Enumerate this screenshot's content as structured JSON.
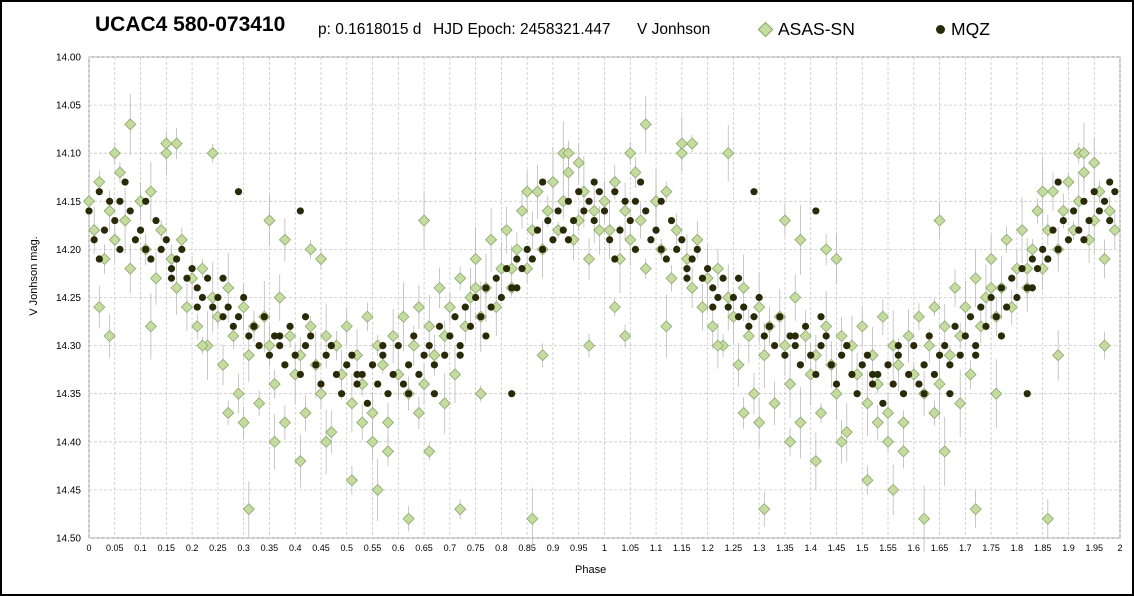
{
  "header": {
    "title": "UCAC4 580-073410",
    "period": "p: 0.1618015 d",
    "epoch": "HJD Epoch:  2458321.447",
    "band": "V Jonhson"
  },
  "legend": {
    "asas_label": "ASAS-SN",
    "mqz_label": "MQZ"
  },
  "colors": {
    "asas_fill": "#c5dca0",
    "asas_stroke": "#8aa66a",
    "mqz_fill": "#2a2a08",
    "grid": "#c8c8c8",
    "errorbar": "#b0b0b0"
  },
  "chart_data": {
    "type": "scatter",
    "title": "UCAC4 580-073410",
    "xlabel": "Phase",
    "ylabel": "V Jonhson mag.",
    "xlim": [
      0,
      2
    ],
    "ylim": [
      14.0,
      14.5
    ],
    "y_inverted": true,
    "grid": true,
    "legend_position": "top",
    "x_ticks": [
      "0",
      "0.05",
      "0.1",
      "0.15",
      "0.2",
      "0.25",
      "0.3",
      "0.35",
      "0.4",
      "0.45",
      "0.5",
      "0.55",
      "0.6",
      "0.65",
      "0.7",
      "0.75",
      "0.8",
      "0.85",
      "0.9",
      "0.95",
      "1",
      "1.05",
      "1.1",
      "1.15",
      "1.2",
      "1.25",
      "1.3",
      "1.35",
      "1.4",
      "1.45",
      "1.5",
      "1.55",
      "1.6",
      "1.65",
      "1.7",
      "1.75",
      "1.8",
      "1.85",
      "1.9",
      "1.95",
      "2"
    ],
    "y_ticks": [
      "14.00",
      "14.05",
      "14.10",
      "14.15",
      "14.20",
      "14.25",
      "14.30",
      "14.35",
      "14.40",
      "14.45",
      "14.50"
    ],
    "series": [
      {
        "name": "ASAS-SN",
        "marker": "diamond",
        "phase": [
          0.0,
          0.01,
          0.02,
          0.03,
          0.04,
          0.05,
          0.06,
          0.07,
          0.08,
          0.1,
          0.11,
          0.12,
          0.13,
          0.14,
          0.15,
          0.16,
          0.17,
          0.18,
          0.19,
          0.2,
          0.21,
          0.22,
          0.23,
          0.24,
          0.25,
          0.26,
          0.27,
          0.28,
          0.29,
          0.3,
          0.31,
          0.32,
          0.33,
          0.34,
          0.35,
          0.36,
          0.37,
          0.38,
          0.39,
          0.4,
          0.41,
          0.42,
          0.43,
          0.44,
          0.45,
          0.46,
          0.47,
          0.48,
          0.49,
          0.5,
          0.51,
          0.52,
          0.53,
          0.54,
          0.55,
          0.56,
          0.57,
          0.58,
          0.59,
          0.6,
          0.61,
          0.62,
          0.63,
          0.64,
          0.65,
          0.66,
          0.67,
          0.68,
          0.69,
          0.7,
          0.71,
          0.72,
          0.73,
          0.74,
          0.75,
          0.76,
          0.77,
          0.78,
          0.79,
          0.8,
          0.81,
          0.82,
          0.83,
          0.84,
          0.85,
          0.86,
          0.87,
          0.88,
          0.89,
          0.9,
          0.91,
          0.92,
          0.93,
          0.94,
          0.95,
          0.96,
          0.97,
          0.98,
          0.99,
          0.02,
          0.05,
          0.08,
          0.12,
          0.17,
          0.22,
          0.27,
          0.31,
          0.36,
          0.41,
          0.46,
          0.51,
          0.56,
          0.62,
          0.66,
          0.72,
          0.76,
          0.82,
          0.86,
          0.92,
          0.97,
          0.04,
          0.24,
          0.3,
          0.38,
          0.43,
          0.53,
          0.58,
          0.64,
          0.69,
          0.88,
          0.93,
          0.15,
          0.35,
          0.45,
          0.55,
          0.75,
          0.85,
          0.95,
          0.1,
          0.65
        ],
        "mag": [
          14.15,
          14.18,
          14.13,
          14.21,
          14.16,
          14.19,
          14.12,
          14.17,
          14.22,
          14.15,
          14.2,
          14.14,
          14.23,
          14.18,
          14.1,
          14.21,
          14.24,
          14.19,
          14.26,
          14.23,
          14.28,
          14.22,
          14.3,
          14.25,
          14.27,
          14.32,
          14.24,
          14.29,
          14.35,
          14.26,
          14.31,
          14.28,
          14.36,
          14.27,
          14.3,
          14.34,
          14.25,
          14.38,
          14.29,
          14.33,
          14.31,
          14.37,
          14.28,
          14.32,
          14.35,
          14.29,
          14.39,
          14.3,
          14.33,
          14.28,
          14.36,
          14.31,
          14.34,
          14.27,
          14.37,
          14.3,
          14.32,
          14.38,
          14.29,
          14.33,
          14.27,
          14.35,
          14.3,
          14.26,
          14.34,
          14.28,
          14.31,
          14.24,
          14.29,
          14.26,
          14.33,
          14.23,
          14.28,
          14.25,
          14.21,
          14.27,
          14.24,
          14.19,
          14.26,
          14.22,
          14.18,
          14.24,
          14.2,
          14.16,
          14.22,
          14.18,
          14.14,
          14.2,
          14.16,
          14.13,
          14.18,
          14.15,
          14.12,
          14.19,
          14.17,
          14.14,
          14.21,
          14.16,
          14.18,
          14.26,
          14.1,
          14.07,
          14.28,
          14.09,
          14.3,
          14.37,
          14.47,
          14.4,
          14.42,
          14.4,
          14.44,
          14.45,
          14.48,
          14.41,
          14.47,
          14.35,
          14.22,
          14.48,
          14.1,
          14.3,
          14.29,
          14.1,
          14.38,
          14.19,
          14.2,
          14.38,
          14.41,
          14.37,
          14.36,
          14.31,
          14.1,
          14.09,
          14.17,
          14.21,
          14.4,
          14.24,
          14.14,
          14.11,
          14.15,
          14.17,
          14.35
        ]
      },
      {
        "name": "MQZ",
        "marker": "circle",
        "phase": [
          0.0,
          0.01,
          0.02,
          0.03,
          0.04,
          0.05,
          0.06,
          0.07,
          0.08,
          0.09,
          0.1,
          0.11,
          0.12,
          0.13,
          0.14,
          0.15,
          0.16,
          0.17,
          0.18,
          0.19,
          0.2,
          0.21,
          0.22,
          0.23,
          0.24,
          0.25,
          0.26,
          0.27,
          0.28,
          0.29,
          0.3,
          0.31,
          0.32,
          0.33,
          0.34,
          0.35,
          0.36,
          0.37,
          0.38,
          0.39,
          0.4,
          0.41,
          0.42,
          0.43,
          0.44,
          0.45,
          0.46,
          0.47,
          0.48,
          0.49,
          0.5,
          0.51,
          0.52,
          0.53,
          0.54,
          0.55,
          0.56,
          0.57,
          0.58,
          0.59,
          0.6,
          0.61,
          0.62,
          0.63,
          0.64,
          0.65,
          0.66,
          0.67,
          0.68,
          0.69,
          0.7,
          0.71,
          0.72,
          0.73,
          0.74,
          0.75,
          0.76,
          0.77,
          0.78,
          0.79,
          0.8,
          0.81,
          0.82,
          0.83,
          0.84,
          0.85,
          0.86,
          0.87,
          0.88,
          0.89,
          0.9,
          0.91,
          0.92,
          0.93,
          0.94,
          0.95,
          0.96,
          0.97,
          0.98,
          0.99,
          0.02,
          0.06,
          0.11,
          0.16,
          0.21,
          0.26,
          0.32,
          0.37,
          0.42,
          0.47,
          0.52,
          0.57,
          0.62,
          0.67,
          0.72,
          0.77,
          0.83,
          0.88,
          0.93,
          0.98,
          0.29,
          0.41,
          0.82
        ],
        "mag": [
          14.16,
          14.19,
          14.14,
          14.18,
          14.15,
          14.17,
          14.2,
          14.13,
          14.16,
          14.19,
          14.18,
          14.15,
          14.21,
          14.17,
          14.2,
          14.19,
          14.22,
          14.21,
          14.2,
          14.23,
          14.22,
          14.24,
          14.25,
          14.23,
          14.26,
          14.25,
          14.27,
          14.26,
          14.28,
          14.27,
          14.25,
          14.29,
          14.28,
          14.3,
          14.27,
          14.31,
          14.29,
          14.3,
          14.32,
          14.28,
          14.31,
          14.33,
          14.3,
          14.29,
          14.32,
          14.34,
          14.31,
          14.3,
          14.33,
          14.35,
          14.32,
          14.31,
          14.34,
          14.33,
          14.36,
          14.32,
          14.34,
          14.31,
          14.35,
          14.33,
          14.3,
          14.34,
          14.32,
          14.29,
          14.33,
          14.31,
          14.3,
          14.32,
          14.28,
          14.31,
          14.29,
          14.27,
          14.3,
          14.26,
          14.28,
          14.25,
          14.27,
          14.24,
          14.26,
          14.23,
          14.25,
          14.22,
          14.24,
          14.21,
          14.22,
          14.2,
          14.21,
          14.18,
          14.2,
          14.17,
          14.19,
          14.16,
          14.18,
          14.15,
          14.17,
          14.14,
          14.16,
          14.15,
          14.17,
          14.14,
          14.21,
          14.15,
          14.2,
          14.23,
          14.26,
          14.23,
          14.28,
          14.29,
          14.27,
          14.3,
          14.33,
          14.3,
          14.35,
          14.35,
          14.31,
          14.29,
          14.24,
          14.13,
          14.19,
          14.13,
          14.14,
          14.16,
          14.35
        ]
      }
    ]
  }
}
